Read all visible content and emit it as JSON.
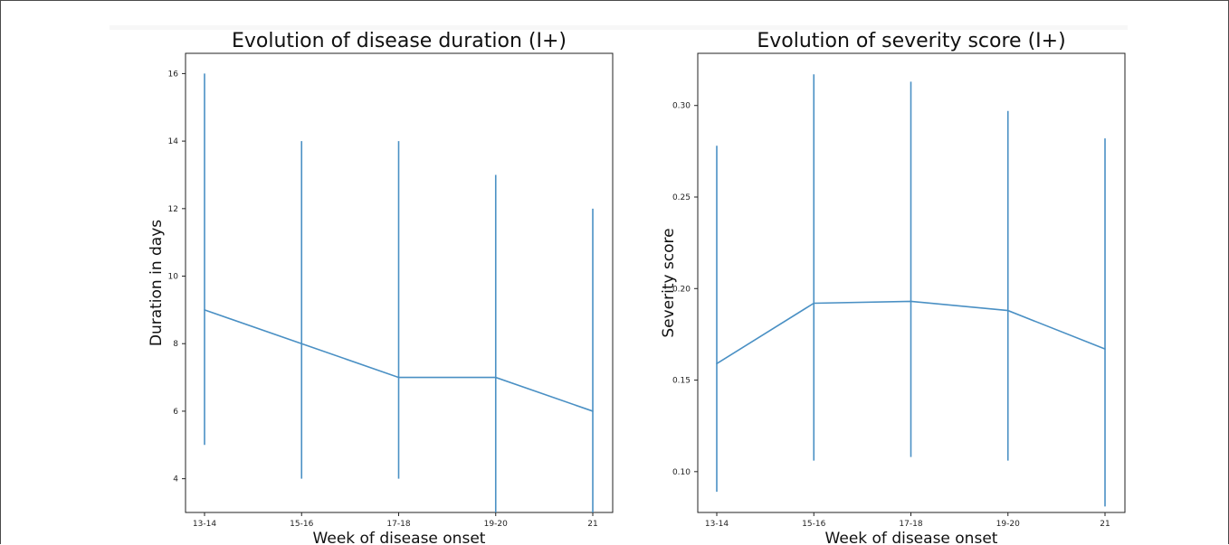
{
  "chart_data": [
    {
      "type": "line",
      "title": "Evolution of disease duration (I+)",
      "xlabel": "Week of disease onset",
      "ylabel": "Duration in days",
      "categories": [
        "13-14",
        "15-16",
        "17-18",
        "19-20",
        "21"
      ],
      "values": [
        9,
        8,
        7,
        7,
        6
      ],
      "error_low": [
        5,
        4,
        4,
        3,
        3
      ],
      "error_high": [
        16,
        14,
        14,
        13,
        12
      ],
      "ylim": [
        3.0,
        16.6
      ],
      "yticks": [
        4,
        6,
        8,
        10,
        12,
        14,
        16
      ],
      "ytick_labels": [
        "4",
        "6",
        "8",
        "10",
        "12",
        "14",
        "16"
      ],
      "grid": false,
      "color": "#4a90c4"
    },
    {
      "type": "line",
      "title": "Evolution of severity score (I+)",
      "xlabel": "Week of disease onset",
      "ylabel": "Severity score",
      "categories": [
        "13-14",
        "15-16",
        "17-18",
        "19-20",
        "21"
      ],
      "values": [
        0.159,
        0.192,
        0.193,
        0.188,
        0.167
      ],
      "error_low": [
        0.089,
        0.106,
        0.108,
        0.106,
        0.081
      ],
      "error_high": [
        0.278,
        0.317,
        0.313,
        0.297,
        0.282
      ],
      "ylim": [
        0.0777,
        0.3285
      ],
      "yticks": [
        0.1,
        0.15,
        0.2,
        0.25,
        0.3
      ],
      "ytick_labels": [
        "0.10",
        "0.15",
        "0.20",
        "0.25",
        "0.30"
      ],
      "grid": false,
      "color": "#4a90c4"
    }
  ]
}
